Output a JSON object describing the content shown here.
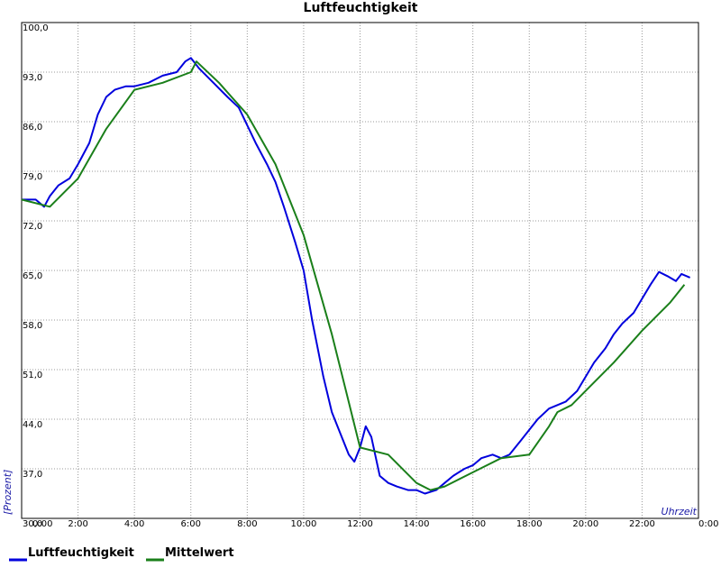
{
  "chart_data": {
    "type": "line",
    "title": "Luftfeuchtigkeit",
    "ylabel": "[Prozent]",
    "xlabel": "Uhrzeit",
    "ylim": [
      30,
      100
    ],
    "y_ticks": [
      "30,0",
      "37,0",
      "44,0",
      "51,0",
      "58,0",
      "65,0",
      "72,0",
      "79,0",
      "86,0",
      "93,0",
      "100,0"
    ],
    "x_ticks": [
      "0:00",
      "2:00",
      "4:00",
      "6:00",
      "8:00",
      "10:00",
      "12:00",
      "14:00",
      "16:00",
      "18:00",
      "20:00",
      "22:00",
      "0:00"
    ],
    "xlim_hours": [
      0,
      24
    ],
    "grid": true,
    "legend_position": "bottom-left",
    "series": [
      {
        "name": "Luftfeuchtigkeit",
        "color": "#0000dd",
        "points": [
          [
            0,
            75
          ],
          [
            0.5,
            75
          ],
          [
            0.8,
            74
          ],
          [
            1,
            75.5
          ],
          [
            1.3,
            77
          ],
          [
            1.7,
            78
          ],
          [
            2,
            80
          ],
          [
            2.4,
            83
          ],
          [
            2.7,
            87
          ],
          [
            3,
            89.5
          ],
          [
            3.3,
            90.5
          ],
          [
            3.7,
            91
          ],
          [
            4,
            91
          ],
          [
            4.5,
            91.5
          ],
          [
            5,
            92.5
          ],
          [
            5.5,
            93
          ],
          [
            5.8,
            94.5
          ],
          [
            6,
            95
          ],
          [
            6.3,
            93.5
          ],
          [
            6.8,
            91.5
          ],
          [
            7.3,
            89.5
          ],
          [
            7.7,
            88
          ],
          [
            8,
            85.5
          ],
          [
            8.3,
            83
          ],
          [
            8.7,
            80
          ],
          [
            9,
            77.5
          ],
          [
            9.3,
            74
          ],
          [
            9.7,
            69
          ],
          [
            10,
            65
          ],
          [
            10.3,
            58
          ],
          [
            10.7,
            50
          ],
          [
            11,
            45
          ],
          [
            11.3,
            42
          ],
          [
            11.6,
            39
          ],
          [
            11.8,
            38
          ],
          [
            12,
            40
          ],
          [
            12.2,
            43
          ],
          [
            12.4,
            41.5
          ],
          [
            12.7,
            36
          ],
          [
            13,
            35
          ],
          [
            13.3,
            34.5
          ],
          [
            13.7,
            34
          ],
          [
            14,
            34
          ],
          [
            14.3,
            33.5
          ],
          [
            14.7,
            34
          ],
          [
            15,
            35
          ],
          [
            15.3,
            36
          ],
          [
            15.7,
            37
          ],
          [
            16,
            37.5
          ],
          [
            16.3,
            38.5
          ],
          [
            16.7,
            39
          ],
          [
            17,
            38.5
          ],
          [
            17.3,
            39
          ],
          [
            17.7,
            41
          ],
          [
            18,
            42.5
          ],
          [
            18.3,
            44
          ],
          [
            18.7,
            45.5
          ],
          [
            19,
            46
          ],
          [
            19.3,
            46.5
          ],
          [
            19.7,
            48
          ],
          [
            20,
            50
          ],
          [
            20.3,
            52
          ],
          [
            20.7,
            54
          ],
          [
            21,
            56
          ],
          [
            21.3,
            57.5
          ],
          [
            21.7,
            59
          ],
          [
            22,
            61
          ],
          [
            22.3,
            63
          ],
          [
            22.6,
            64.8
          ],
          [
            22.9,
            64.2
          ],
          [
            23.2,
            63.5
          ],
          [
            23.4,
            64.5
          ],
          [
            23.7,
            64
          ]
        ]
      },
      {
        "name": "Mittelwert",
        "color": "#1a7f1a",
        "points": [
          [
            0,
            75
          ],
          [
            1,
            74
          ],
          [
            2,
            78
          ],
          [
            3,
            85
          ],
          [
            4,
            90.5
          ],
          [
            5,
            91.5
          ],
          [
            6,
            93
          ],
          [
            6.2,
            94.5
          ],
          [
            7,
            91.5
          ],
          [
            8,
            87
          ],
          [
            9,
            80
          ],
          [
            10,
            70
          ],
          [
            11,
            56
          ],
          [
            11.5,
            48
          ],
          [
            12,
            40
          ],
          [
            13,
            39
          ],
          [
            14,
            35
          ],
          [
            14.5,
            34
          ],
          [
            15,
            34.5
          ],
          [
            16,
            36.5
          ],
          [
            17,
            38.5
          ],
          [
            18,
            39
          ],
          [
            18.7,
            43
          ],
          [
            19,
            45
          ],
          [
            19.5,
            46
          ],
          [
            20,
            48
          ],
          [
            21,
            52
          ],
          [
            22,
            56.5
          ],
          [
            23,
            60.5
          ],
          [
            23.5,
            63
          ]
        ]
      }
    ]
  }
}
